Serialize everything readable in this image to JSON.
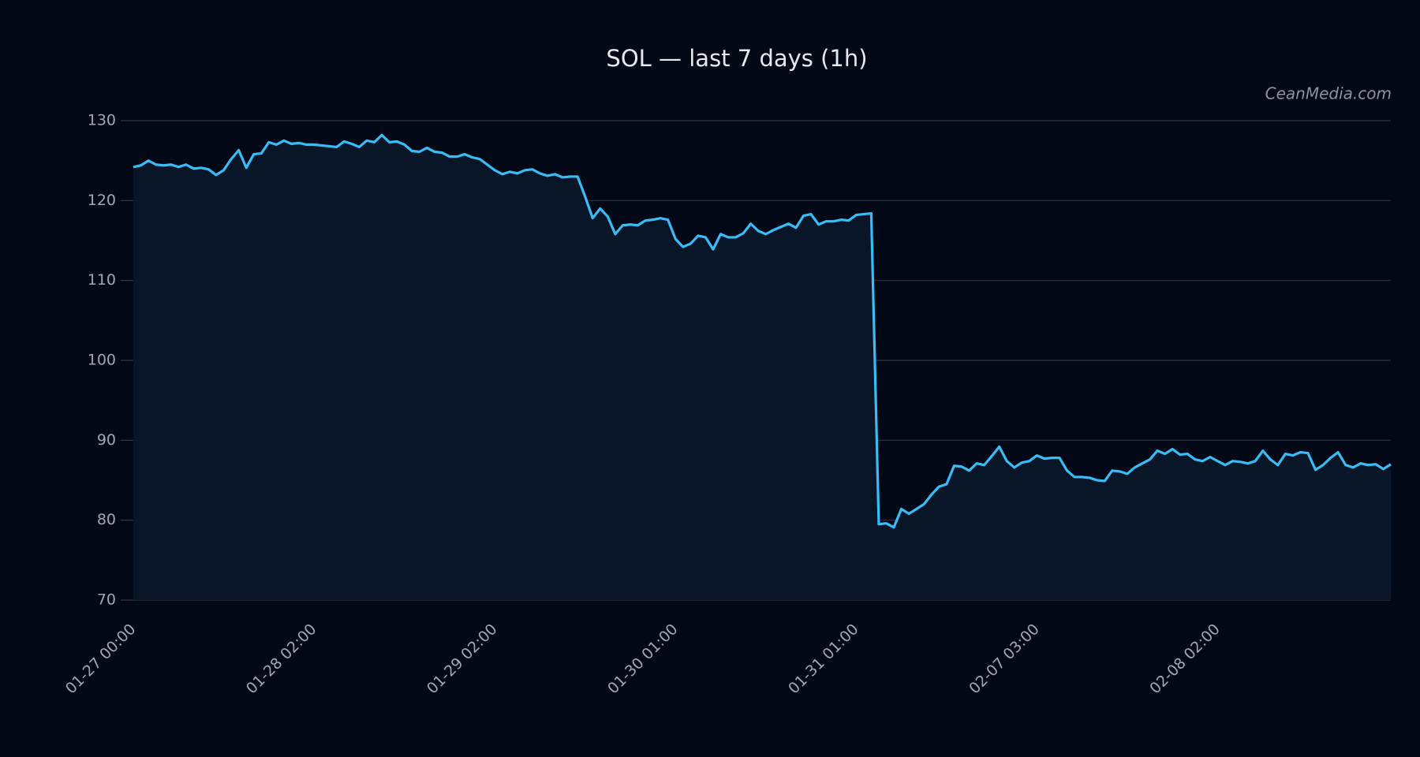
{
  "chart_data": {
    "type": "line",
    "title": "SOL — last 7 days (1h)",
    "watermark": "CeanMedia.com",
    "categories": [
      "01-27 00:00",
      null,
      null,
      null,
      null,
      null,
      null,
      null,
      null,
      null,
      null,
      null,
      null,
      null,
      null,
      null,
      null,
      null,
      null,
      null,
      null,
      null,
      null,
      null,
      "01-28 02:00",
      null,
      null,
      null,
      null,
      null,
      null,
      null,
      null,
      null,
      null,
      null,
      null,
      null,
      null,
      null,
      null,
      null,
      null,
      null,
      null,
      null,
      null,
      null,
      "01-29 02:00",
      null,
      null,
      null,
      null,
      null,
      null,
      null,
      null,
      null,
      null,
      null,
      null,
      null,
      null,
      null,
      null,
      null,
      null,
      null,
      null,
      null,
      null,
      null,
      "01-30 01:00",
      null,
      null,
      null,
      null,
      null,
      null,
      null,
      null,
      null,
      null,
      null,
      null,
      null,
      null,
      null,
      null,
      null,
      null,
      null,
      null,
      null,
      null,
      null,
      "01-31 01:00",
      null,
      null,
      null,
      null,
      null,
      null,
      null,
      null,
      null,
      null,
      null,
      null,
      null,
      null,
      null,
      null,
      null,
      null,
      null,
      null,
      null,
      null,
      null,
      "02-07 03:00",
      null,
      null,
      null,
      null,
      null,
      null,
      null,
      null,
      null,
      null,
      null,
      null,
      null,
      null,
      null,
      null,
      null,
      null,
      null,
      null,
      null,
      null,
      null,
      "02-08 02:00",
      null,
      null,
      null,
      null,
      null,
      null,
      null,
      null,
      null,
      null,
      null,
      null,
      null,
      null,
      null,
      null,
      null,
      null,
      null,
      null,
      null,
      null,
      null
    ],
    "series": [
      {
        "color": "#38bdf8",
        "values": [
          124.2,
          124.4,
          125.0,
          124.5,
          124.4,
          124.5,
          124.2,
          124.5,
          124.0,
          124.1,
          123.9,
          123.2,
          123.8,
          125.2,
          126.3,
          124.1,
          125.8,
          125.9,
          127.3,
          127.0,
          127.5,
          127.1,
          127.2,
          127.0,
          127.0,
          126.9,
          126.8,
          126.7,
          127.4,
          127.1,
          126.7,
          127.5,
          127.3,
          128.2,
          127.3,
          127.4,
          127.0,
          126.2,
          126.1,
          126.6,
          126.1,
          126.0,
          125.5,
          125.5,
          125.8,
          125.4,
          125.2,
          124.5,
          123.8,
          123.3,
          123.6,
          123.4,
          123.8,
          123.9,
          123.4,
          123.1,
          123.3,
          122.9,
          123.0,
          123.0,
          120.5,
          117.8,
          119.0,
          118.0,
          115.8,
          116.9,
          117.0,
          116.9,
          117.5,
          117.6,
          117.8,
          117.6,
          115.2,
          114.2,
          114.6,
          115.6,
          115.4,
          113.9,
          115.8,
          115.4,
          115.4,
          115.9,
          117.1,
          116.2,
          115.8,
          116.3,
          116.7,
          117.1,
          116.6,
          118.1,
          118.3,
          117.0,
          117.4,
          117.4,
          117.6,
          117.5,
          118.2,
          118.3,
          118.4,
          79.5,
          79.6,
          79.1,
          81.4,
          80.8,
          81.4,
          82.0,
          83.2,
          84.2,
          84.5,
          86.8,
          86.7,
          86.2,
          87.1,
          86.9,
          88.0,
          89.2,
          87.4,
          86.6,
          87.2,
          87.4,
          88.1,
          87.7,
          87.8,
          87.8,
          86.2,
          85.4,
          85.4,
          85.3,
          85.0,
          84.9,
          86.2,
          86.1,
          85.8,
          86.6,
          87.1,
          87.6,
          88.7,
          88.3,
          88.9,
          88.2,
          88.3,
          87.6,
          87.4,
          87.9,
          87.4,
          86.9,
          87.4,
          87.3,
          87.1,
          87.4,
          88.7,
          87.6,
          86.9,
          88.3,
          88.1,
          88.5,
          88.4,
          86.3,
          86.9,
          87.8,
          88.5,
          86.9,
          86.6,
          87.1,
          86.9,
          87.0,
          86.4,
          87.0
        ]
      }
    ],
    "ylim": [
      70,
      130
    ],
    "yticks": [
      70,
      80,
      90,
      100,
      110,
      120,
      130
    ],
    "grid": true,
    "area": true
  }
}
